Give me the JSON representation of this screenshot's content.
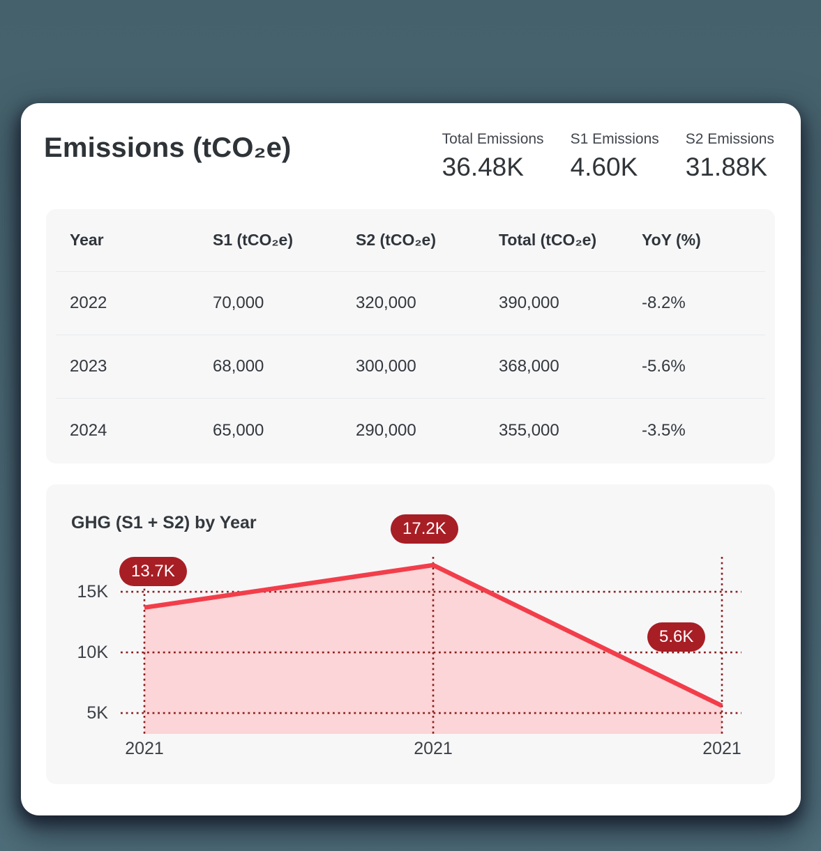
{
  "colors": {
    "page_bg_top": "#45616b",
    "page_bg_bottom": "#50707c",
    "card_bg": "#ffffff",
    "panel_bg": "#f7f7f8",
    "accent_red": "#f23e4a",
    "area_fill": "#fbd5d7",
    "grid_red": "#8c1d1d",
    "pill_bg": "#a81e25",
    "text_dark": "#2e3338"
  },
  "header": {
    "title": "Emissions (tCO₂e)",
    "kpis": [
      {
        "label": "Total Emissions",
        "value": "36.48K"
      },
      {
        "label": "S1 Emissions",
        "value": "4.60K"
      },
      {
        "label": "S2 Emissions",
        "value": "31.88K"
      }
    ]
  },
  "table": {
    "columns": [
      "Year",
      "S1 (tCO₂e)",
      "S2 (tCO₂e)",
      "Total (tCO₂e)",
      "YoY (%)"
    ],
    "rows": [
      [
        "2022",
        "70,000",
        "320,000",
        "390,000",
        "-8.2%"
      ],
      [
        "2023",
        "68,000",
        "300,000",
        "368,000",
        "-5.6%"
      ],
      [
        "2024",
        "65,000",
        "290,000",
        "355,000",
        "-3.5%"
      ]
    ]
  },
  "chart_data": [
    {
      "type": "area",
      "title": "GHG (S1 + S2) by Year",
      "categories": [
        "2021",
        "2021",
        "2021"
      ],
      "values": [
        13.7,
        17.2,
        5.6
      ],
      "point_labels": [
        "13.7K",
        "17.2K",
        "5.6K"
      ],
      "yticks": [
        15,
        10,
        5
      ],
      "ytick_labels": [
        "15K",
        "10K",
        "5K"
      ],
      "ylim": [
        3.28,
        17.88
      ],
      "grid": "dashed-red",
      "legend": "none",
      "unit": "tCO2e (thousands)"
    },
    {
      "type": "table",
      "title": "Emissions by year",
      "columns": [
        "Year",
        "S1 (tCO₂e)",
        "S2 (tCO₂e)",
        "Total (tCO₂e)",
        "YoY (%)"
      ],
      "rows": [
        [
          "2022",
          70000,
          320000,
          390000,
          -8.2
        ],
        [
          "2023",
          68000,
          300000,
          368000,
          -5.6
        ],
        [
          "2024",
          65000,
          290000,
          355000,
          -3.5
        ]
      ]
    }
  ]
}
